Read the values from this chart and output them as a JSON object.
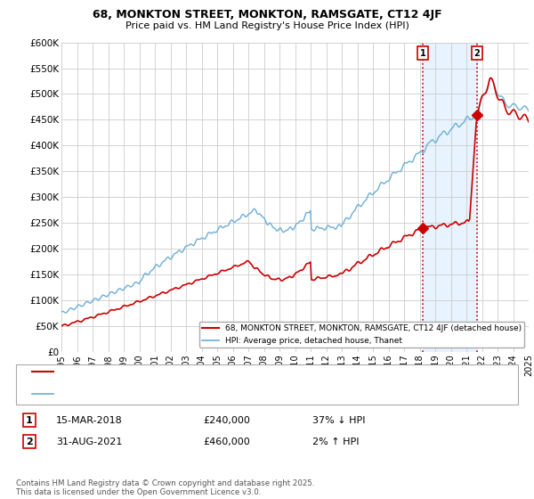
{
  "title": "68, MONKTON STREET, MONKTON, RAMSGATE, CT12 4JF",
  "subtitle": "Price paid vs. HM Land Registry's House Price Index (HPI)",
  "ylabel_ticks": [
    "£0",
    "£50K",
    "£100K",
    "£150K",
    "£200K",
    "£250K",
    "£300K",
    "£350K",
    "£400K",
    "£450K",
    "£500K",
    "£550K",
    "£600K"
  ],
  "ylim": [
    0,
    600000
  ],
  "ytick_vals": [
    0,
    50000,
    100000,
    150000,
    200000,
    250000,
    300000,
    350000,
    400000,
    450000,
    500000,
    550000,
    600000
  ],
  "xmin": 1995,
  "xmax": 2025,
  "hpi_color": "#6baed6",
  "price_color": "#cc0000",
  "marker1_year": 2018.2,
  "marker1_price": 240000,
  "marker2_year": 2021.67,
  "marker2_price": 460000,
  "legend_line1": "68, MONKTON STREET, MONKTON, RAMSGATE, CT12 4JF (detached house)",
  "legend_line2": "HPI: Average price, detached house, Thanet",
  "annotation1_num": "1",
  "annotation1_date": "15-MAR-2018",
  "annotation1_price": "£240,000",
  "annotation1_hpi": "37% ↓ HPI",
  "annotation2_num": "2",
  "annotation2_date": "31-AUG-2021",
  "annotation2_price": "£460,000",
  "annotation2_hpi": "2% ↑ HPI",
  "footer": "Contains HM Land Registry data © Crown copyright and database right 2025.\nThis data is licensed under the Open Government Licence v3.0.",
  "background_color": "#ffffff",
  "grid_color": "#cccccc",
  "shade_color": "#ddeeff"
}
